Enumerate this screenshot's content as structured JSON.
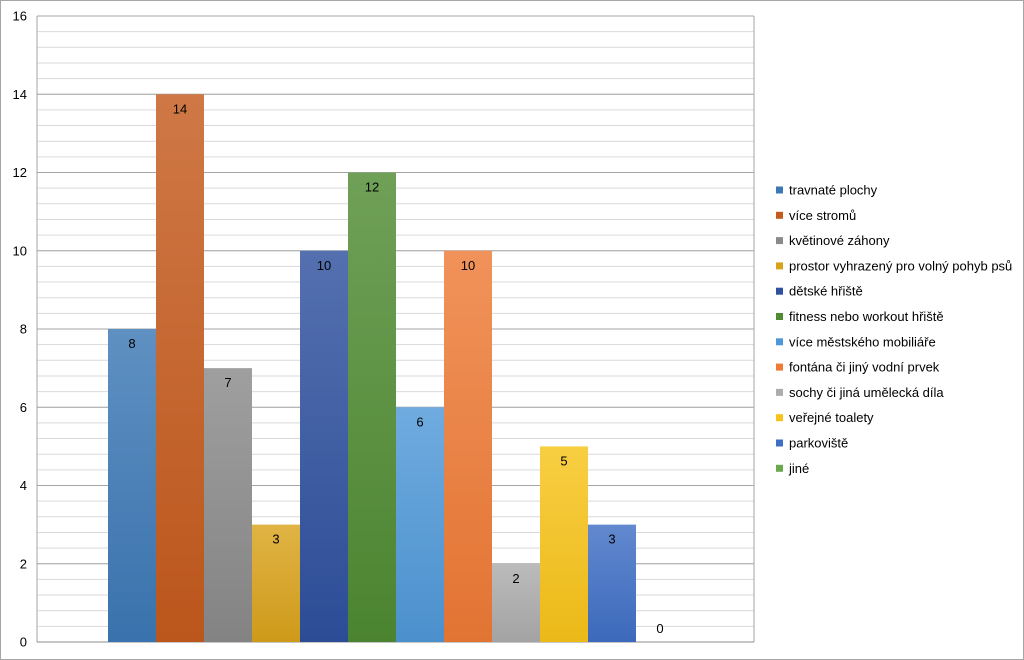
{
  "chart_data": {
    "type": "bar",
    "title": "",
    "xlabel": "",
    "ylabel": "",
    "ylim": [
      0,
      16
    ],
    "y_major_step": 2,
    "y_minor_step": 0.4,
    "grid": true,
    "legend_position": "right",
    "series": [
      {
        "name": "travnaté plochy",
        "value": 8,
        "color": "#3c78b5"
      },
      {
        "name": "více stromů",
        "value": 14,
        "color": "#c55a1d"
      },
      {
        "name": "květinové záhony",
        "value": 7,
        "color": "#8a8a8a"
      },
      {
        "name": "prostor vyhrazený pro volný pohyb psů",
        "value": 3,
        "color": "#d9a21b"
      },
      {
        "name": "dětské hřiště",
        "value": 10,
        "color": "#2e509e"
      },
      {
        "name": "fitness nebo workout hřiště",
        "value": 12,
        "color": "#4f8b32"
      },
      {
        "name": "více městského mobiliáře",
        "value": 6,
        "color": "#4f98d8"
      },
      {
        "name": "fontána či jiný vodní prvek",
        "value": 10,
        "color": "#ee7a36"
      },
      {
        "name": "sochy či jiná umělecká díla",
        "value": 2,
        "color": "#acacac"
      },
      {
        "name": "veřejné toalety",
        "value": 5,
        "color": "#f7c319"
      },
      {
        "name": "parkoviště",
        "value": 3,
        "color": "#3f6fc5"
      },
      {
        "name": "jiné",
        "value": 0,
        "color": "#6aa84f"
      }
    ]
  }
}
